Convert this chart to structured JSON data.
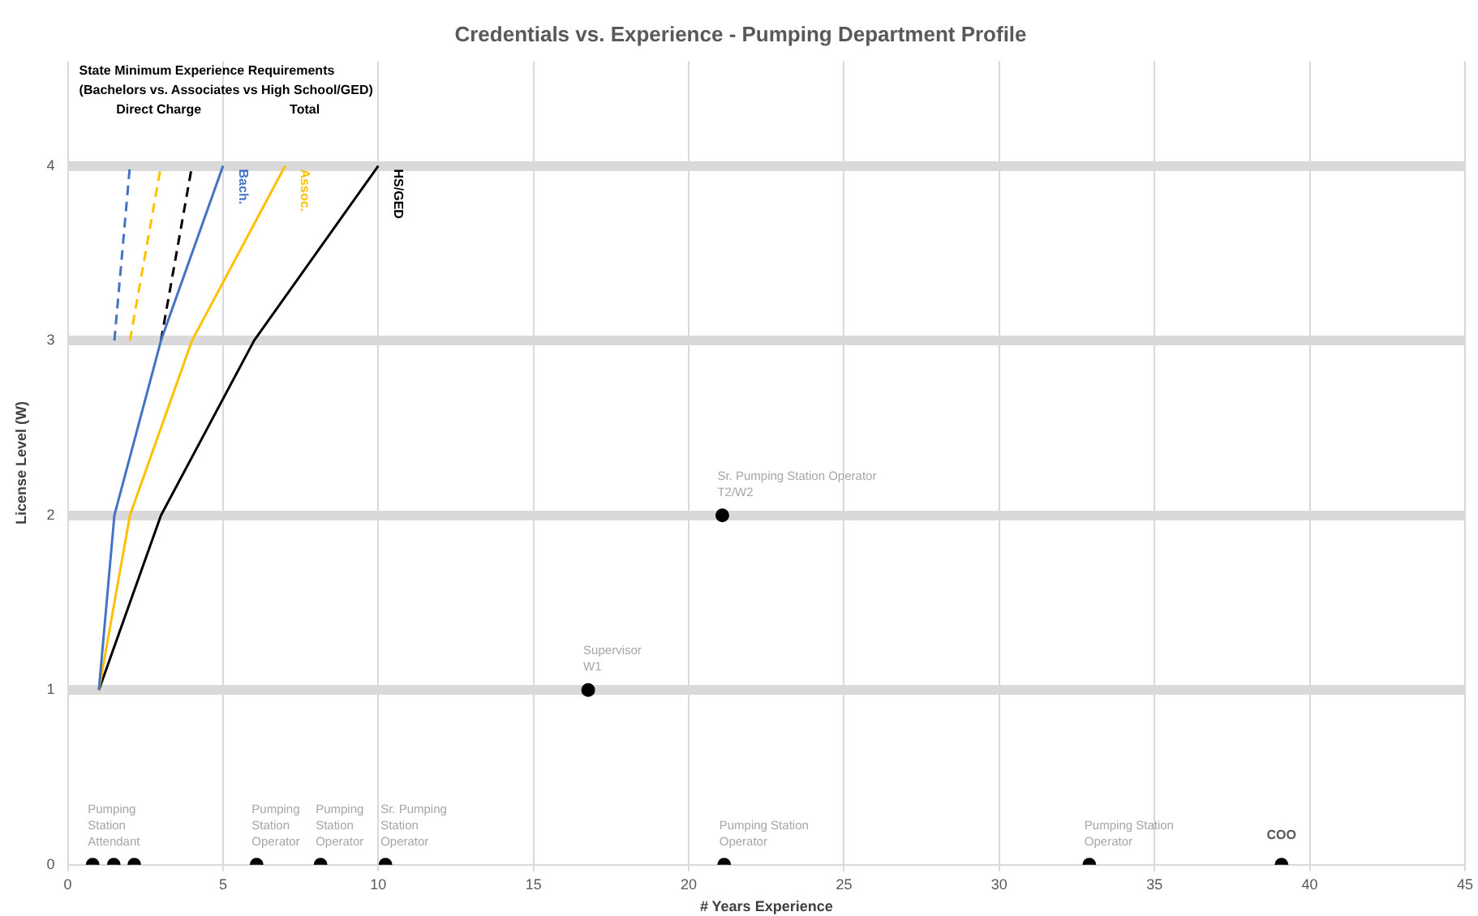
{
  "chart_data": {
    "type": "line",
    "title": "Credentials vs. Experience - Pumping Department Profile",
    "xlabel": "# Years Experience",
    "ylabel": "License Level (W)",
    "xlim": [
      0,
      45
    ],
    "xticks": [
      0,
      5,
      10,
      15,
      20,
      25,
      30,
      35,
      40,
      45
    ],
    "ylim": [
      0,
      4.6
    ],
    "yticks": [
      0,
      1,
      2,
      3,
      4
    ],
    "grid": true,
    "legend": false,
    "marker": "none",
    "series": [
      {
        "name": "Bach.",
        "color": "#4472c4",
        "x": [
          1,
          1.5,
          3,
          5
        ],
        "values": [
          1,
          2,
          3,
          4
        ]
      },
      {
        "name": "Assoc.",
        "color": "#ffc000",
        "x": [
          1,
          2,
          4,
          7
        ],
        "values": [
          1,
          2,
          3,
          4
        ]
      },
      {
        "name": "HS/GED",
        "color": "#000000",
        "x": [
          1,
          3,
          6,
          10
        ],
        "values": [
          1,
          2,
          3,
          4
        ]
      },
      {
        "color": "#4472c4",
        "x": [
          1.5,
          2
        ],
        "values": [
          3,
          4
        ],
        "line_style": "dashed"
      },
      {
        "color": "#ffc000",
        "x": [
          2,
          3
        ],
        "values": [
          3,
          4
        ],
        "line_style": "dashed"
      },
      {
        "color": "#000000",
        "x": [
          3,
          4
        ],
        "values": [
          3,
          4
        ],
        "line_style": "dashed"
      },
      {
        "type": "scatter",
        "marker": "circle",
        "color": "#000000",
        "x": [
          0.8,
          1.48,
          2.14,
          6.08,
          8.14,
          10.23,
          16.76,
          21.08,
          21.14,
          32.9,
          39.09
        ],
        "values": [
          0,
          0,
          0,
          0,
          0,
          0,
          1,
          2,
          0,
          0,
          0
        ]
      }
    ],
    "annotations": [
      "State Minimum Experience Requirements",
      "(Bachelors vs. Associates vs High School/GED)",
      "Direct Charge",
      "Total",
      {
        "text": "Pumping\nStation\nAttendant",
        "x": 0.8,
        "y": 0
      },
      {
        "text": "Pumping\nStation\nOperator",
        "x": 6.08,
        "y": 0
      },
      {
        "text": "Pumping\nStation\nOperator",
        "x": 8.14,
        "y": 0
      },
      {
        "text": "Sr. Pumping\nStation\nOperator",
        "x": 10.23,
        "y": 0
      },
      {
        "text": "Supervisor\nW1",
        "x": 16.76,
        "y": 1
      },
      {
        "text": "Sr. Pumping Station Operator\nT2/W2",
        "x": 21.08,
        "y": 2
      },
      {
        "text": "Pumping Station\nOperator",
        "x": 21.14,
        "y": 0
      },
      {
        "text": "Pumping Station\nOperator",
        "x": 32.9,
        "y": 0
      },
      {
        "text": "COO",
        "x": 39.09,
        "y": 0
      }
    ]
  }
}
